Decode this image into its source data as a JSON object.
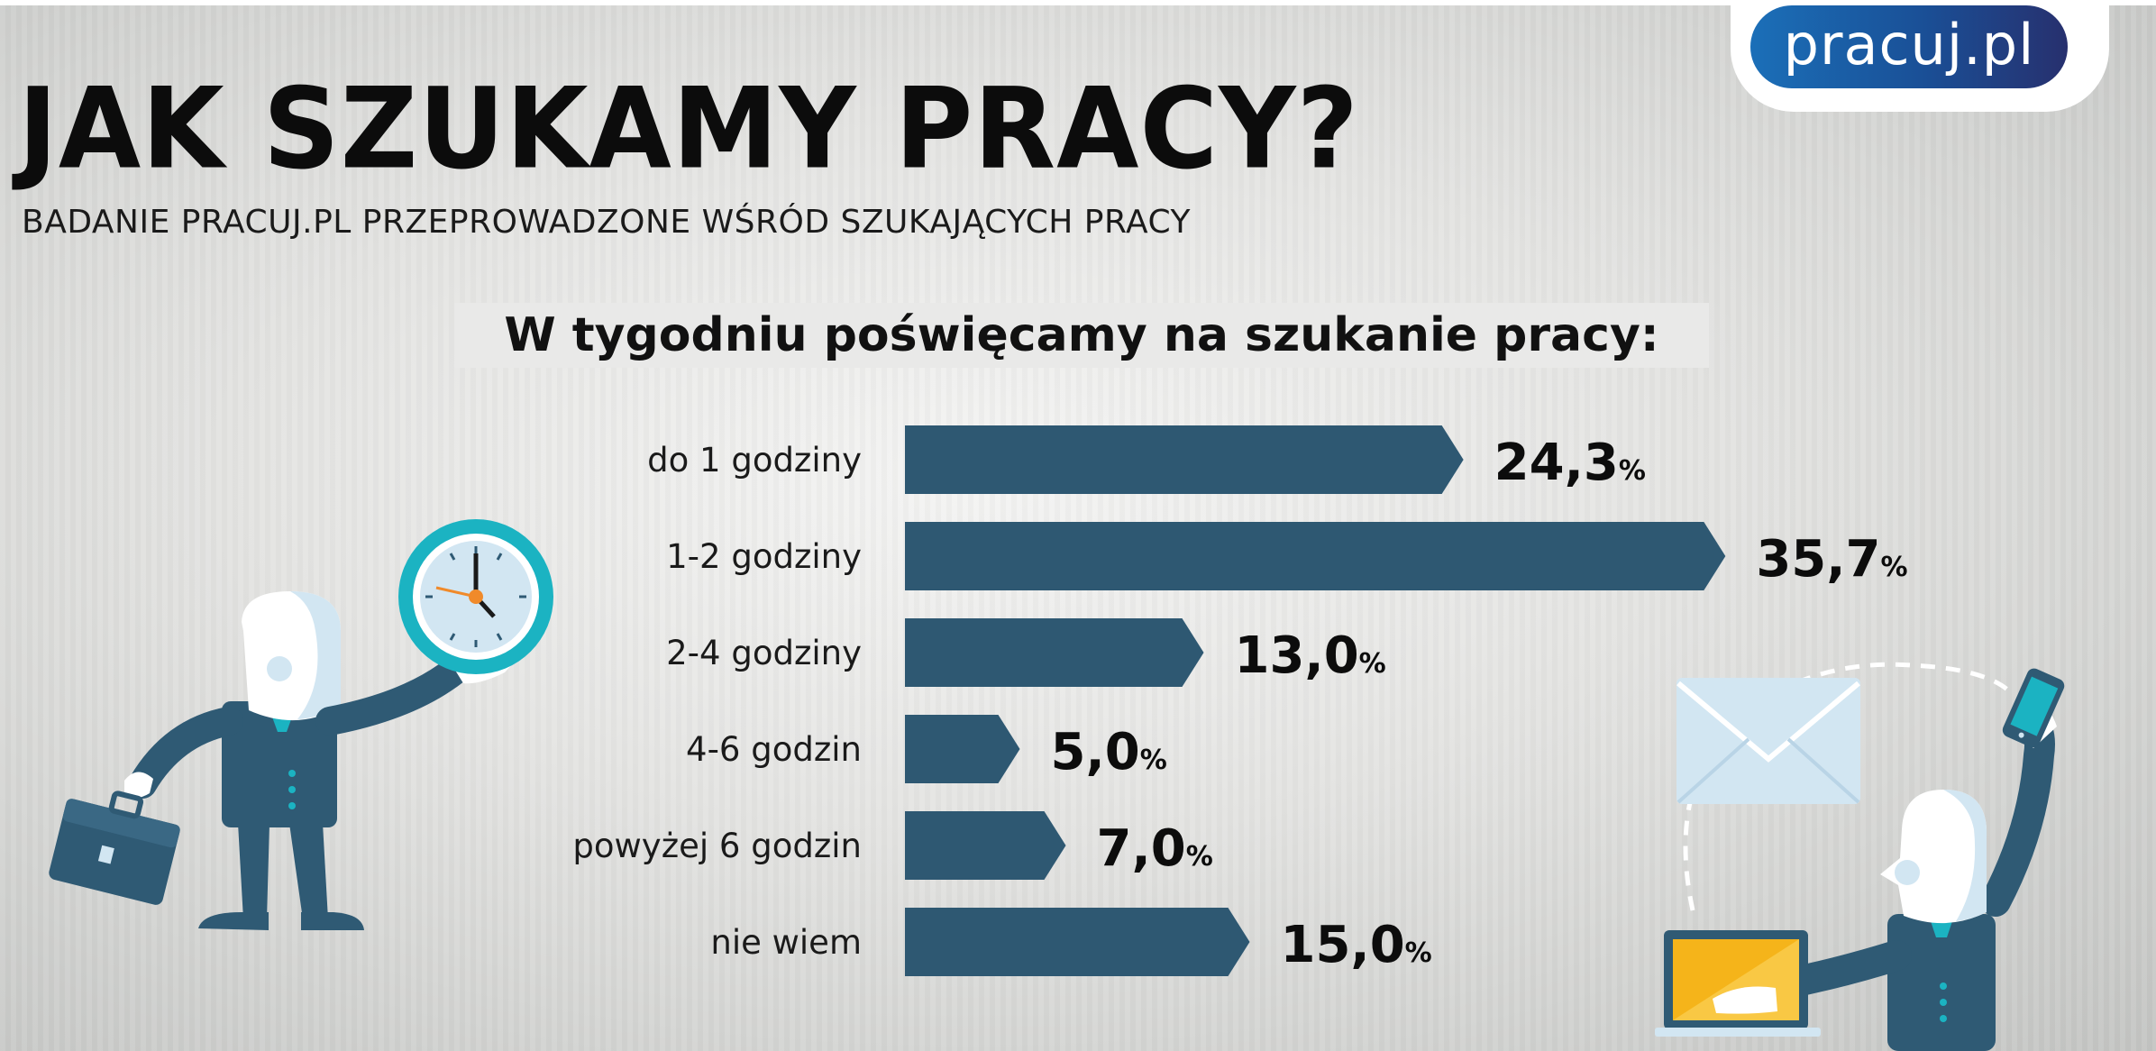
{
  "header": {
    "title": "JAK SZUKAMY PRACY?",
    "subtitle": "BADANIE PRACUJ.PL PRZEPROWADZONE WŚRÓD SZUKAJĄCYCH PRACY",
    "logo_text": "pracuj.pl"
  },
  "chart_data": {
    "type": "bar",
    "orientation": "horizontal",
    "title": "W tygodniu poświęcamy na szukanie pracy:",
    "categories": [
      "do 1  godziny",
      "1-2 godziny",
      "2-4  godziny",
      "4-6 godzin",
      "powyżej 6 godzin",
      "nie wiem"
    ],
    "values": [
      24.3,
      35.7,
      13.0,
      5.0,
      7.0,
      15.0
    ],
    "value_labels": [
      "24,3",
      "35,7",
      "13,0",
      "5,0",
      "7,0",
      "15,0"
    ],
    "unit": "%",
    "grid": false,
    "legend": "none",
    "colors": {
      "bar": "#2e5872",
      "text": "#0c0c0c"
    }
  },
  "illustrations": {
    "left": "businessman-holding-clock-icon",
    "right": "businessman-with-laptop-email-phone-icon"
  },
  "colors": {
    "figure_navy": "#2f5a74",
    "clock_teal": "#1bb3c2",
    "laptop_yellow": "#f5b41a",
    "face": "#ffffff",
    "face_shadow": "#d2e6f2"
  }
}
